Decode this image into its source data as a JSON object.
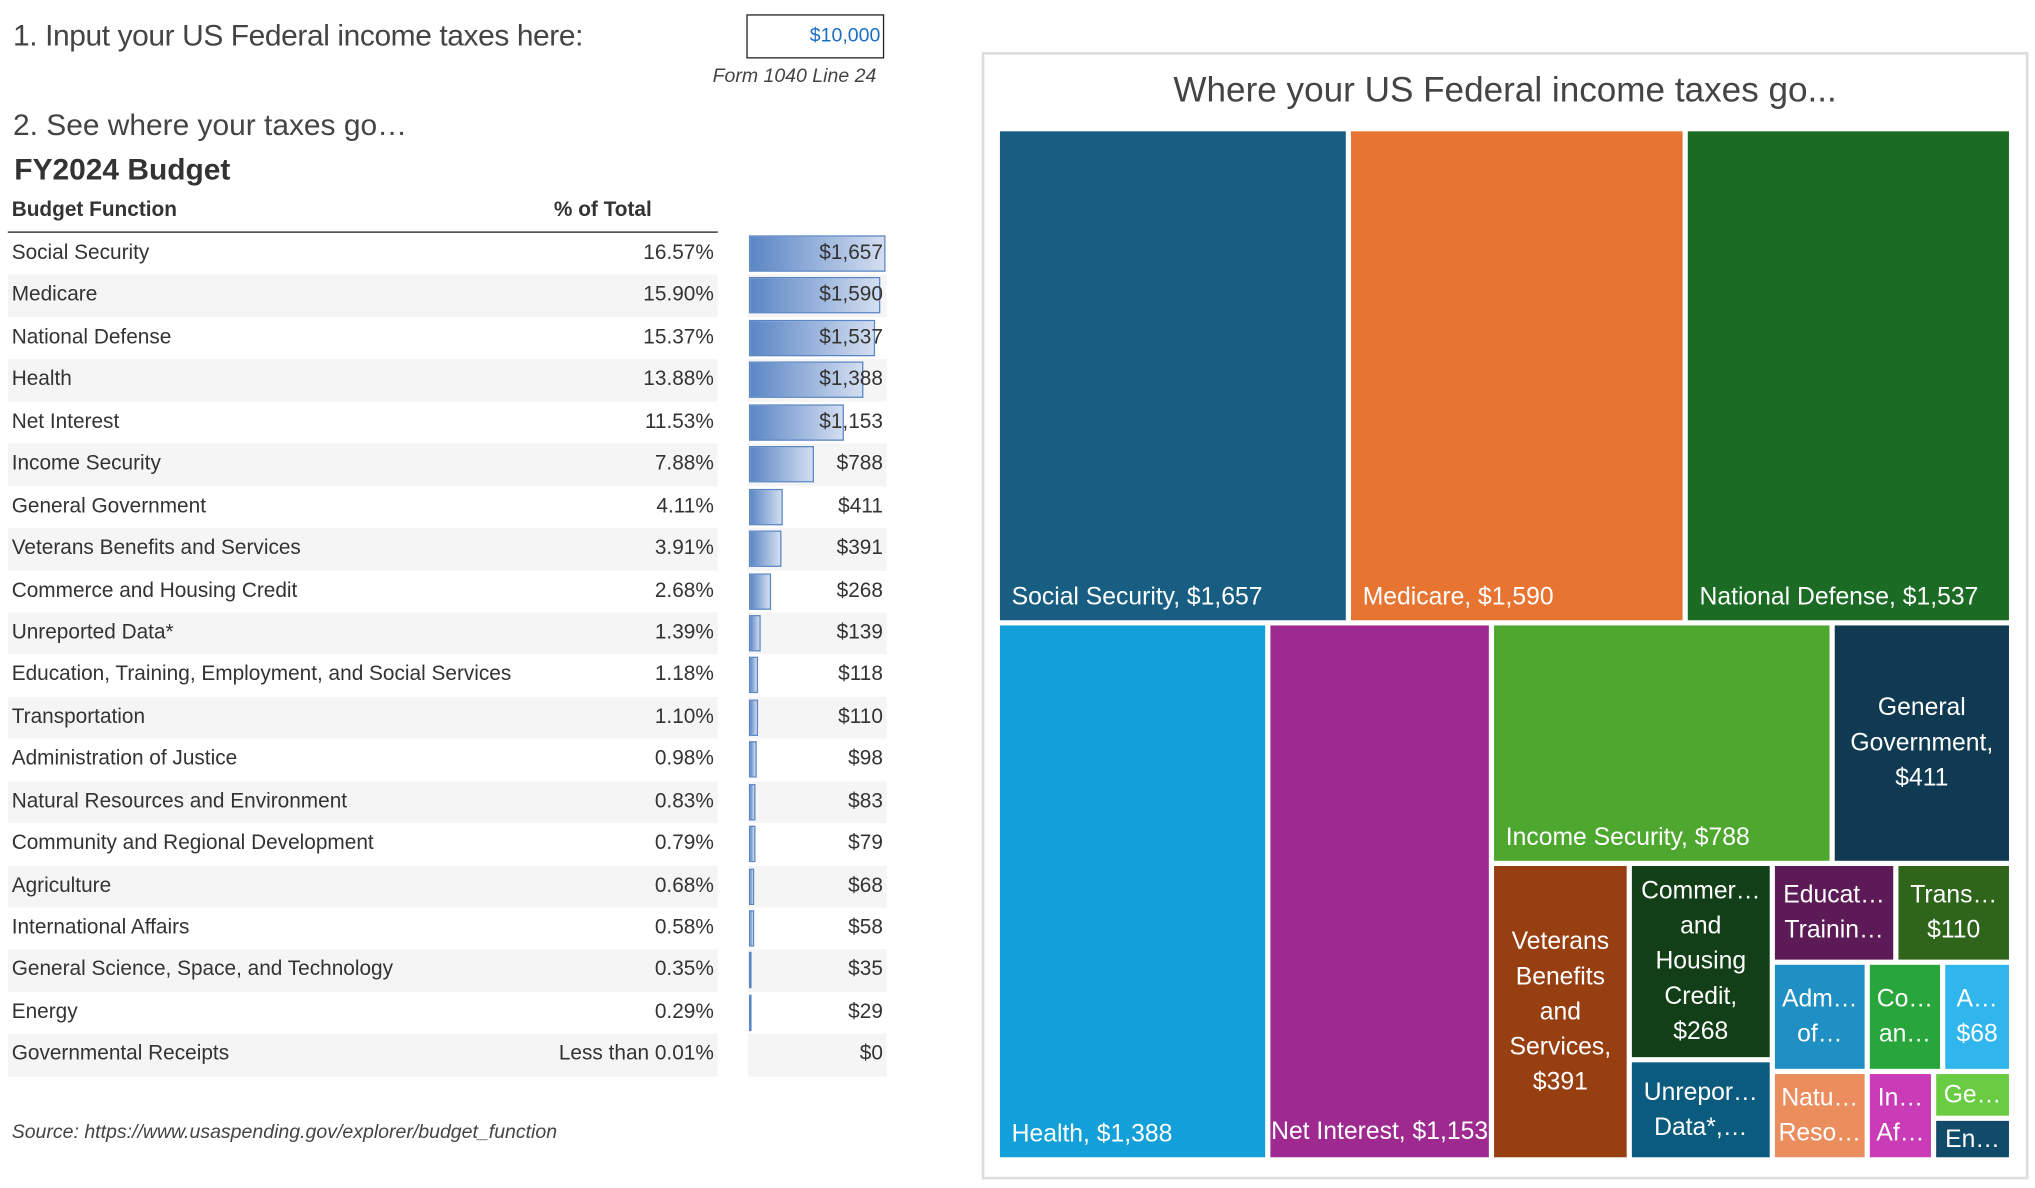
{
  "input": {
    "prompt": "1. Input your US Federal income taxes here:",
    "value": "$10,000",
    "note": "Form 1040 Line 24"
  },
  "section2": "2. See where your taxes go…",
  "table": {
    "title": "FY2024 Budget",
    "headers": [
      "Budget Function",
      "% of Total"
    ],
    "max_amount": 1657,
    "rows": [
      {
        "name": "Social Security",
        "pct": "16.57%",
        "amount": "$1,657",
        "value": 1657
      },
      {
        "name": "Medicare",
        "pct": "15.90%",
        "amount": "$1,590",
        "value": 1590
      },
      {
        "name": "National Defense",
        "pct": "15.37%",
        "amount": "$1,537",
        "value": 1537
      },
      {
        "name": "Health",
        "pct": "13.88%",
        "amount": "$1,388",
        "value": 1388
      },
      {
        "name": "Net Interest",
        "pct": "11.53%",
        "amount": "$1,153",
        "value": 1153
      },
      {
        "name": "Income Security",
        "pct": "7.88%",
        "amount": "$788",
        "value": 788
      },
      {
        "name": "General Government",
        "pct": "4.11%",
        "amount": "$411",
        "value": 411
      },
      {
        "name": "Veterans Benefits and Services",
        "pct": "3.91%",
        "amount": "$391",
        "value": 391
      },
      {
        "name": "Commerce and Housing Credit",
        "pct": "2.68%",
        "amount": "$268",
        "value": 268
      },
      {
        "name": "Unreported Data*",
        "pct": "1.39%",
        "amount": "$139",
        "value": 139
      },
      {
        "name": "Education, Training, Employment, and Social Services",
        "pct": "1.18%",
        "amount": "$118",
        "value": 118
      },
      {
        "name": "Transportation",
        "pct": "1.10%",
        "amount": "$110",
        "value": 110
      },
      {
        "name": "Administration of Justice",
        "pct": "0.98%",
        "amount": "$98",
        "value": 98
      },
      {
        "name": "Natural Resources and Environment",
        "pct": "0.83%",
        "amount": "$83",
        "value": 83
      },
      {
        "name": "Community and Regional Development",
        "pct": "0.79%",
        "amount": "$79",
        "value": 79
      },
      {
        "name": "Agriculture",
        "pct": "0.68%",
        "amount": "$68",
        "value": 68
      },
      {
        "name": "International Affairs",
        "pct": "0.58%",
        "amount": "$58",
        "value": 58
      },
      {
        "name": "General Science, Space, and Technology",
        "pct": "0.35%",
        "amount": "$35",
        "value": 35
      },
      {
        "name": "Energy",
        "pct": "0.29%",
        "amount": "$29",
        "value": 29
      },
      {
        "name": "Governmental Receipts",
        "pct": "Less than 0.01%",
        "amount": "$0",
        "value": 0
      }
    ]
  },
  "source": "Source: https://www.usaspending.gov/explorer/budget_function",
  "treemap": {
    "title": "Where your US Federal income taxes go...",
    "tiles": [
      {
        "label": "Social Security, $1,657",
        "color": "#175e82"
      },
      {
        "label": "Medicare, $1,590",
        "color": "#e87432"
      },
      {
        "label": "National Defense, $1,537",
        "color": "#1c6b24"
      },
      {
        "label": "Health, $1,388",
        "color": "#139fd7"
      },
      {
        "label": "Net Interest, $1,153",
        "color": "#9e2a8f"
      },
      {
        "label": "Income Security, $788",
        "color": "#4ea72f"
      },
      {
        "label": "General Government, $411",
        "color": "#0f3a52"
      },
      {
        "label": "Veterans Benefits and Services, $391",
        "color": "#983f12"
      },
      {
        "label": "Commer… and Housing Credit, $268",
        "color": "#123f17"
      },
      {
        "label": "Unrepor… Data*,…",
        "color": "#0a5b7d"
      },
      {
        "label": "Educat… Trainin…",
        "color": "#5c1b56"
      },
      {
        "label": "Trans… $110",
        "color": "#2f641b"
      },
      {
        "label": "Adm… of…",
        "color": "#208fc3"
      },
      {
        "label": "Co… an…",
        "color": "#28a63c"
      },
      {
        "label": "A… $68",
        "color": "#30b6ec"
      },
      {
        "label": "Natu… Reso…",
        "color": "#ec8d5e"
      },
      {
        "label": "In… Af…",
        "color": "#c93bb7"
      },
      {
        "label": "Ge…",
        "color": "#6acc42"
      },
      {
        "label": "En…",
        "color": "#124a6a"
      }
    ]
  }
}
